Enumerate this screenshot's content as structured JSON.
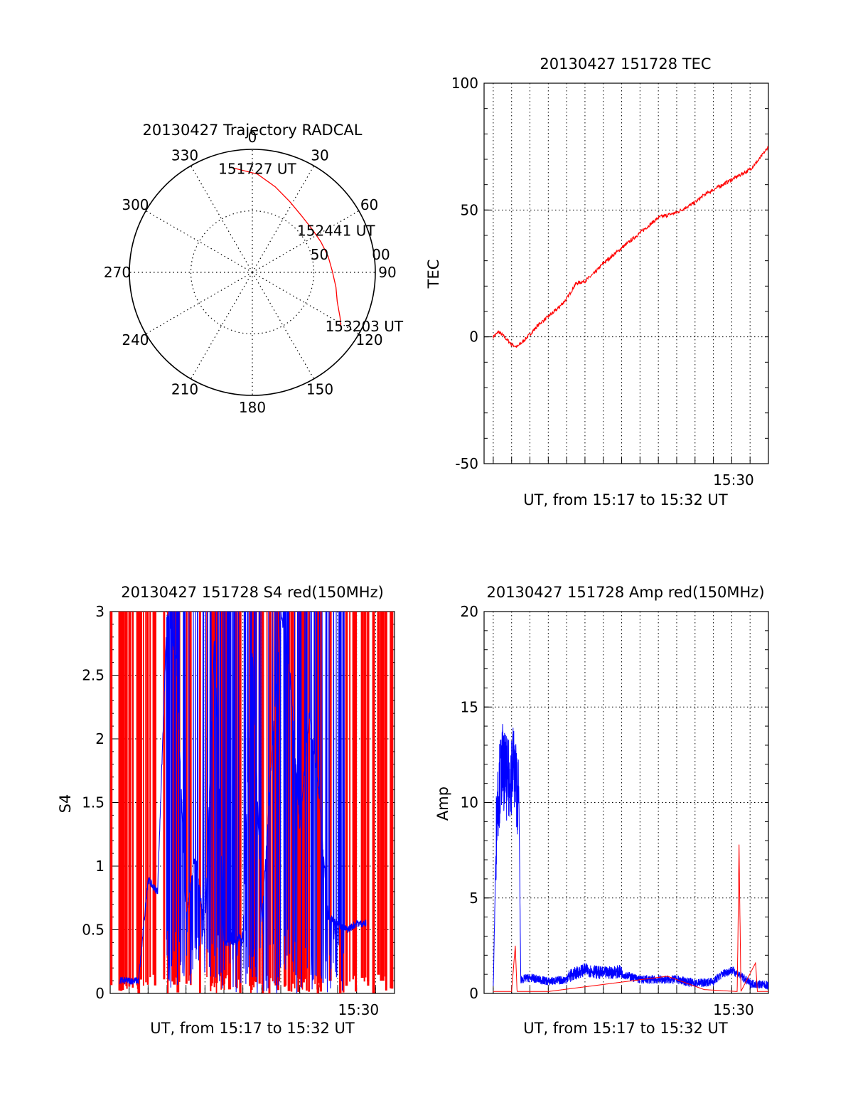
{
  "colors": {
    "red": "#ff0000",
    "blue": "#0000ff",
    "axis": "#000000",
    "grid": "#000000"
  },
  "chart_data": [
    {
      "id": "trajectory",
      "type": "polar",
      "title": "20130427 Trajectory RADCAL",
      "angle_labels": [
        {
          "deg": 0,
          "label": "0"
        },
        {
          "deg": 30,
          "label": "30"
        },
        {
          "deg": 60,
          "label": "60"
        },
        {
          "deg": 90,
          "label": "90"
        },
        {
          "deg": 120,
          "label": "120"
        },
        {
          "deg": 150,
          "label": "150"
        },
        {
          "deg": 180,
          "label": "180"
        },
        {
          "deg": 210,
          "label": "210"
        },
        {
          "deg": 240,
          "label": "240"
        },
        {
          "deg": 270,
          "label": "270"
        },
        {
          "deg": 300,
          "label": "300"
        },
        {
          "deg": 330,
          "label": "330"
        }
      ],
      "radial_rings": [
        {
          "zenith": 50,
          "label": "50"
        },
        {
          "zenith": 100,
          "label": "00"
        }
      ],
      "rmax": 100,
      "track": [
        {
          "az": -10,
          "zen": 86
        },
        {
          "az": 3,
          "zen": 80
        },
        {
          "az": 15,
          "zen": 72
        },
        {
          "az": 28,
          "zen": 65
        },
        {
          "az": 41,
          "zen": 61
        },
        {
          "az": 55,
          "zen": 60
        },
        {
          "az": 66,
          "zen": 61
        },
        {
          "az": 78,
          "zen": 63
        },
        {
          "az": 89,
          "zen": 65
        },
        {
          "az": 100,
          "zen": 69
        },
        {
          "az": 109,
          "zen": 73
        },
        {
          "az": 117,
          "zen": 80
        },
        {
          "az": 121,
          "zen": 84
        }
      ],
      "annotations": [
        {
          "text": "151727 UT",
          "az": -10,
          "zen": 86
        },
        {
          "text": "152441 UT",
          "az": 55,
          "zen": 60
        },
        {
          "text": "153203 UT",
          "az": 121,
          "zen": 84
        }
      ]
    },
    {
      "id": "tec",
      "type": "line",
      "title": "20130427 151728 TEC",
      "ylabel": "TEC",
      "xlabel": "UT, from 15:17 to 15:32 UT",
      "ylim": [
        -50,
        100
      ],
      "yticks": [
        -50,
        0,
        50,
        100
      ],
      "xtick_labels": [
        {
          "at": 13.1,
          "label": "15:30"
        }
      ],
      "xlim": [
        -0.5,
        15.0
      ],
      "grid": true,
      "series": [
        {
          "color": "red",
          "x": [
            0.0,
            0.3,
            0.6,
            1.0,
            1.3,
            1.6,
            2.0,
            2.5,
            3.0,
            3.5,
            4.0,
            4.5,
            5.0,
            5.5,
            6.0,
            6.5,
            7.0,
            7.5,
            8.0,
            8.5,
            9.0,
            9.5,
            10.0,
            10.5,
            11.0,
            11.5,
            12.0,
            12.5,
            13.0,
            13.5,
            14.0,
            14.5,
            15.0
          ],
          "y": [
            0,
            2,
            0,
            -3,
            -4,
            -2,
            1,
            5,
            8,
            11,
            15,
            21,
            22,
            25,
            29,
            32,
            35,
            38,
            41,
            44,
            47,
            48,
            49,
            51,
            53,
            56,
            58,
            60,
            62,
            64,
            66,
            70,
            75
          ]
        }
      ]
    },
    {
      "id": "s4",
      "type": "line",
      "title": "20130427 151728 S4 red(150MHz)",
      "ylabel": "S4",
      "xlabel": "UT, from 15:17 to 15:32 UT",
      "ylim": [
        0,
        3
      ],
      "yticks": [
        0,
        0.5,
        1,
        1.5,
        2,
        2.5,
        3
      ],
      "ytick_labels": [
        "0",
        "0.5",
        "1",
        "1.5",
        "2",
        "2.5",
        "3"
      ],
      "xtick_labels": [
        {
          "at": 13.1,
          "label": "15:30"
        }
      ],
      "xlim": [
        0,
        15.0
      ],
      "grid": true,
      "series": [
        {
          "color": "red",
          "note": "dense spikes",
          "x": [
            0.1,
            0.4,
            0.9,
            2.0,
            2.4,
            3.1,
            3.6,
            4.2,
            4.8,
            5.5,
            6.3,
            6.9,
            7.5,
            8.1,
            8.7,
            9.4,
            10.1,
            10.6,
            11.2,
            11.9,
            12.6,
            13.3,
            14.2,
            14.7
          ],
          "y": [
            3,
            3,
            3,
            3,
            3,
            3,
            3,
            3,
            3,
            3,
            3,
            3,
            3,
            3,
            3,
            3,
            3,
            3,
            3,
            3,
            3,
            3,
            3,
            3
          ]
        },
        {
          "color": "blue",
          "x": [
            0.5,
            1.0,
            1.5,
            2.0,
            2.2,
            2.5,
            3.0,
            3.5,
            4.0,
            4.5,
            5.0,
            5.5,
            6.0,
            6.5,
            7.0,
            7.5,
            8.0,
            8.5,
            9.0,
            9.5,
            10.0,
            10.5,
            11.0,
            11.5,
            12.5,
            13.0,
            13.5
          ],
          "y": [
            0.1,
            0.1,
            0.1,
            0.9,
            0.85,
            0.8,
            3.0,
            2.6,
            0.6,
            1.1,
            0.45,
            2.8,
            0.4,
            0.4,
            0.45,
            2.7,
            0.55,
            1.8,
            3.0,
            2.5,
            1.3,
            2.2,
            1.6,
            0.6,
            0.5,
            0.55,
            0.55
          ]
        }
      ]
    },
    {
      "id": "amp",
      "type": "line",
      "title": "20130427 151728 Amp red(150MHz)",
      "ylabel": "Amp",
      "xlabel": "UT, from 15:17 to 15:32 UT",
      "ylim": [
        0,
        20
      ],
      "yticks": [
        0,
        5,
        10,
        15,
        20
      ],
      "xtick_labels": [
        {
          "at": 13.1,
          "label": "15:30"
        }
      ],
      "xlim": [
        -0.5,
        15.0
      ],
      "grid": true,
      "series": [
        {
          "color": "blue",
          "x": [
            0.0,
            0.2,
            0.5,
            0.8,
            1.1,
            1.4,
            1.5,
            2.0,
            3.0,
            4.0,
            5.0,
            6.0,
            7.0,
            8.0,
            9.0,
            10.0,
            11.0,
            12.0,
            12.5,
            13.0,
            13.5,
            14.0,
            15.0
          ],
          "y": [
            0,
            10,
            12,
            11,
            12,
            10,
            0.5,
            0.6,
            0.4,
            0.5,
            0.9,
            0.7,
            0.8,
            0.5,
            0.5,
            0.5,
            0.3,
            0.4,
            0.8,
            1.0,
            0.7,
            0.3,
            0.2
          ]
        },
        {
          "color": "red",
          "x": [
            0.0,
            1.0,
            1.2,
            1.3,
            1.4,
            3.0,
            9.5,
            11.5,
            13.3,
            13.4,
            13.5,
            14.3,
            14.4,
            15.0
          ],
          "y": [
            0.1,
            0.1,
            2.5,
            0.1,
            0.1,
            0.1,
            0.9,
            0.2,
            0.1,
            7.8,
            0.1,
            1.6,
            0.1,
            0.1
          ]
        }
      ]
    }
  ]
}
